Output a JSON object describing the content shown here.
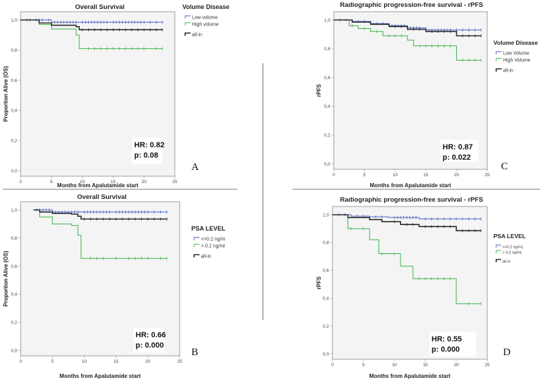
{
  "chart_data": [
    {
      "type": "line",
      "panel_letter": "A",
      "title": "Overall Survival",
      "xlabel": "Months from Apalutamide start",
      "ylabel": "Proportion Alive (OS)",
      "xlim": [
        0,
        25
      ],
      "ylim": [
        0,
        1
      ],
      "xticks": [
        "0",
        "5",
        "10",
        "15",
        "20",
        "25"
      ],
      "yticks": [
        "0,0",
        "0,2",
        "0,4",
        "0,6",
        "0,8",
        "1,0"
      ],
      "legend_title": "Volume Disease",
      "hr_text": "HR: 0.82",
      "p_text": "p: 0.08",
      "series": [
        {
          "name": "Low volume",
          "color": "#4a62c4",
          "steps": [
            [
              0,
              1.0
            ],
            [
              2,
              1.0
            ],
            [
              5,
              0.985
            ],
            [
              23,
              0.985
            ]
          ],
          "censor": [
            1,
            1.5,
            2.5,
            3,
            3.5,
            4.5,
            5.5,
            6,
            6.5,
            7,
            7.5,
            8,
            8.5,
            9,
            10,
            10.5,
            11,
            11.5,
            12,
            12.5,
            13,
            13.5,
            14,
            15,
            15.5,
            16,
            16.5,
            17,
            17.5,
            18,
            18.5,
            19,
            19.5,
            20,
            21,
            22,
            23
          ]
        },
        {
          "name": "High volume",
          "color": "#3fb24a",
          "steps": [
            [
              0,
              1.0
            ],
            [
              3,
              0.97
            ],
            [
              5,
              0.94
            ],
            [
              9,
              0.9
            ],
            [
              9.5,
              0.81
            ],
            [
              23,
              0.81
            ]
          ],
          "censor": [
            11,
            12,
            13,
            14,
            15,
            16,
            17,
            18,
            19,
            20,
            22,
            23
          ]
        },
        {
          "name": "all-in",
          "color": "#2b2b2b",
          "steps": [
            [
              0,
              1.0
            ],
            [
              3,
              0.98
            ],
            [
              5,
              0.965
            ],
            [
              9,
              0.955
            ],
            [
              9.5,
              0.935
            ],
            [
              23,
              0.935
            ]
          ],
          "censor": [
            10,
            11,
            12,
            13,
            14,
            15,
            16,
            17,
            18,
            19,
            20,
            21,
            22,
            23
          ]
        }
      ]
    },
    {
      "type": "line",
      "panel_letter": "C",
      "title": "Radiographic progression-free survival - rPFS",
      "xlabel": "Months from Apalutamide start",
      "ylabel": "rPFS",
      "xlim": [
        0,
        25
      ],
      "ylim": [
        0,
        1
      ],
      "xticks": [
        "0",
        "5",
        "10",
        "15",
        "20",
        "25"
      ],
      "yticks": [
        "0,0",
        "0,2",
        "0,4",
        "0,6",
        "0,8",
        "1,0"
      ],
      "legend_title": "Volume Disease",
      "hr_text": "HR: 0.87",
      "p_text": "p: 0.022",
      "series": [
        {
          "name": "Low Volume",
          "color": "#4a62c4",
          "steps": [
            [
              0,
              1.0
            ],
            [
              3,
              0.99
            ],
            [
              6,
              0.975
            ],
            [
              9,
              0.96
            ],
            [
              12,
              0.945
            ],
            [
              15,
              0.93
            ],
            [
              24,
              0.93
            ]
          ],
          "censor": [
            1,
            2,
            4,
            5,
            7,
            8,
            9.5,
            10,
            10.5,
            11,
            11.5,
            12.5,
            13,
            13.5,
            14,
            15.5,
            16,
            16.5,
            17,
            17.5,
            18,
            18.5,
            19,
            20,
            21,
            22,
            23,
            24
          ]
        },
        {
          "name": "High Volume",
          "color": "#3fb24a",
          "steps": [
            [
              0,
              1.0
            ],
            [
              2.5,
              0.96
            ],
            [
              4,
              0.94
            ],
            [
              6,
              0.92
            ],
            [
              8,
              0.89
            ],
            [
              12,
              0.86
            ],
            [
              13,
              0.82
            ],
            [
              20,
              0.72
            ],
            [
              24,
              0.72
            ]
          ],
          "censor": [
            3,
            5,
            7,
            9,
            10,
            11,
            14,
            15,
            16,
            17,
            18,
            19,
            21,
            22,
            23,
            24
          ]
        },
        {
          "name": "all-in",
          "color": "#2b2b2b",
          "steps": [
            [
              0,
              1.0
            ],
            [
              3,
              0.985
            ],
            [
              6,
              0.97
            ],
            [
              9,
              0.955
            ],
            [
              12,
              0.935
            ],
            [
              15,
              0.92
            ],
            [
              20,
              0.89
            ],
            [
              24,
              0.89
            ]
          ],
          "censor": [
            10,
            11,
            13,
            14,
            16,
            17,
            18,
            19,
            21,
            22,
            23,
            24
          ]
        }
      ]
    },
    {
      "type": "line",
      "panel_letter": "B",
      "title": "Overall Survival",
      "xlabel": "Months from Apalutamide start",
      "ylabel": "Proportion Alive (OS)",
      "xlim": [
        0,
        25
      ],
      "ylim": [
        0,
        1
      ],
      "xticks": [
        "0",
        "5",
        "10",
        "15",
        "20",
        "25"
      ],
      "yticks": [
        "0,0",
        "0,2",
        "0,4",
        "0,6",
        "0,8",
        "1,0"
      ],
      "legend_title": "PSA LEVEL",
      "hr_text": "HR: 0.66",
      "p_text": "p: 0.000",
      "series": [
        {
          "name": "<=0.2 ng/m",
          "color": "#4a62c4",
          "steps": [
            [
              2,
              1.0
            ],
            [
              5,
              0.985
            ],
            [
              23,
              0.985
            ]
          ],
          "censor": [
            2.5,
            3,
            3.5,
            4,
            4.5,
            5.5,
            6,
            6.5,
            7,
            7.5,
            8,
            8.5,
            9,
            10,
            10.5,
            11,
            11.5,
            12,
            12.5,
            13,
            13.5,
            14,
            15,
            15.5,
            16,
            16.5,
            17,
            17.5,
            18,
            18.5,
            19,
            19.5,
            20,
            21,
            22,
            23
          ]
        },
        {
          "name": "> 0.2 ng/ml",
          "color": "#3fb24a",
          "steps": [
            [
              2,
              1.0
            ],
            [
              3,
              0.95
            ],
            [
              5,
              0.9
            ],
            [
              8,
              0.89
            ],
            [
              9,
              0.82
            ],
            [
              9.5,
              0.655
            ],
            [
              23,
              0.655
            ]
          ],
          "censor": [
            11,
            12,
            13,
            15,
            17,
            18,
            19,
            20,
            22,
            23
          ]
        },
        {
          "name": "all-in",
          "color": "#2b2b2b",
          "steps": [
            [
              2,
              1.0
            ],
            [
              3,
              0.985
            ],
            [
              5,
              0.975
            ],
            [
              8,
              0.97
            ],
            [
              9,
              0.955
            ],
            [
              9.5,
              0.935
            ],
            [
              23,
              0.935
            ]
          ],
          "censor": [
            10,
            11,
            12,
            13,
            14,
            15,
            16,
            17,
            18,
            19,
            20,
            21,
            22,
            23
          ]
        }
      ]
    },
    {
      "type": "line",
      "panel_letter": "D",
      "title": "Radiographic progression-free survival - rPFS",
      "xlabel": "Months from Apalutamide start",
      "ylabel": "rPFS",
      "xlim": [
        0,
        25
      ],
      "ylim": [
        0,
        1
      ],
      "xticks": [
        "0",
        "5",
        "10",
        "15",
        "20",
        "25"
      ],
      "yticks": [
        "0,0",
        "0,2",
        "0,4",
        "0,6",
        "0,8",
        "1,0"
      ],
      "legend_title": "PSA LEVEL",
      "hr_text": "HR: 0.55",
      "p_text": "p: 0.000",
      "series": [
        {
          "name": "<=0.2 ng/mL",
          "color": "#4a62c4",
          "steps": [
            [
              0,
              1.0
            ],
            [
              3,
              0.99
            ],
            [
              6,
              0.985
            ],
            [
              9,
              0.98
            ],
            [
              14,
              0.97
            ],
            [
              24,
              0.97
            ]
          ],
          "censor": [
            1,
            2,
            4,
            5,
            7,
            8,
            10,
            10.5,
            11,
            11.5,
            12,
            12.5,
            13,
            13.5,
            15,
            16,
            17,
            18,
            19,
            20,
            21,
            22,
            23,
            24
          ]
        },
        {
          "name": "> 0.2 ng/mL",
          "color": "#3fb24a",
          "steps": [
            [
              0,
              1.0
            ],
            [
              2.5,
              0.9
            ],
            [
              6,
              0.82
            ],
            [
              7.5,
              0.72
            ],
            [
              9,
              0.72
            ],
            [
              11,
              0.63
            ],
            [
              13,
              0.54
            ],
            [
              20,
              0.36
            ],
            [
              24,
              0.36
            ]
          ],
          "censor": [
            3,
            5,
            8,
            10,
            14,
            15,
            16,
            17,
            18,
            19,
            22,
            24
          ]
        },
        {
          "name": "all-in",
          "color": "#2b2b2b",
          "steps": [
            [
              0,
              1.0
            ],
            [
              2.5,
              0.98
            ],
            [
              6,
              0.965
            ],
            [
              8,
              0.95
            ],
            [
              11,
              0.93
            ],
            [
              14,
              0.915
            ],
            [
              20,
              0.885
            ],
            [
              24,
              0.885
            ]
          ],
          "censor": [
            10,
            12,
            13,
            15,
            16,
            17,
            18,
            19,
            21,
            22,
            23,
            24
          ]
        }
      ]
    }
  ]
}
